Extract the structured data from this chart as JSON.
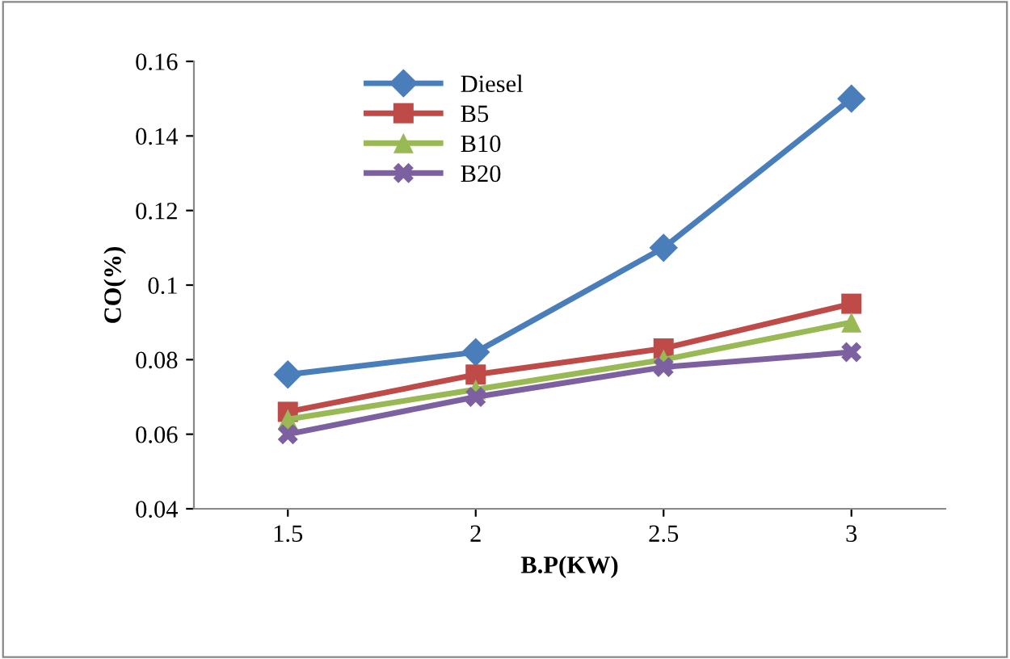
{
  "chart_data": {
    "type": "line",
    "xlabel": "B.P(KW)",
    "ylabel": "CO(%)",
    "categories": [
      "1.5",
      "2",
      "2.5",
      "3"
    ],
    "series": [
      {
        "name": "Diesel",
        "color": "#4a7ebb",
        "marker": "diamond",
        "values": [
          0.076,
          0.082,
          0.11,
          0.15
        ]
      },
      {
        "name": "B5",
        "color": "#be4b48",
        "marker": "square",
        "values": [
          0.066,
          0.076,
          0.083,
          0.095
        ]
      },
      {
        "name": "B10",
        "color": "#98b954",
        "marker": "triangle",
        "values": [
          0.064,
          0.072,
          0.08,
          0.09
        ]
      },
      {
        "name": "B20",
        "color": "#7d60a0",
        "marker": "cross",
        "values": [
          0.06,
          0.07,
          0.078,
          0.082
        ]
      }
    ],
    "ylim": [
      0.04,
      0.16
    ],
    "yticks": [
      0.04,
      0.06,
      0.08,
      0.1,
      0.12,
      0.14,
      0.16
    ],
    "grid": false,
    "legend": "top left",
    "line_style": "solid"
  }
}
